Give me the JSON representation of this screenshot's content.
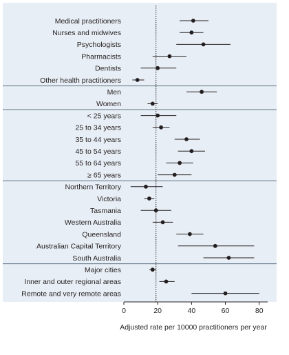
{
  "colors": {
    "panel_background": "#e8eef5",
    "divider": "#5c7184",
    "marker": "#231f20",
    "whisker": "#231f20",
    "reference_line": "#231f20",
    "axis": "#231f20",
    "text": "#231f20"
  },
  "chart_data": {
    "type": "forest",
    "title": "",
    "xlabel": "Adjusted rate per 10000 practitioners per year",
    "ylabel": "",
    "xlim": [
      0,
      85
    ],
    "xticks": [
      0,
      20,
      40,
      60,
      80
    ],
    "reference_value": 19,
    "grid": false,
    "legend": "none",
    "groups": [
      {
        "rows": [
          {
            "label": "Medical practitioners",
            "estimate": 41,
            "lower": 33,
            "upper": 50
          },
          {
            "label": "Nurses and midwives",
            "estimate": 40,
            "lower": 33,
            "upper": 47
          },
          {
            "label": "Psychologists",
            "estimate": 47,
            "lower": 31,
            "upper": 63
          },
          {
            "label": "Pharmacists",
            "estimate": 27,
            "lower": 17,
            "upper": 37
          },
          {
            "label": "Dentists",
            "estimate": 20,
            "lower": 10,
            "upper": 31
          },
          {
            "label": "Other health practitioners",
            "estimate": 8,
            "lower": 5,
            "upper": 12
          }
        ]
      },
      {
        "rows": [
          {
            "label": "Men",
            "estimate": 46,
            "lower": 37,
            "upper": 55
          },
          {
            "label": "Women",
            "estimate": 17,
            "lower": 14,
            "upper": 20
          }
        ]
      },
      {
        "rows": [
          {
            "label": "< 25 years",
            "estimate": 20,
            "lower": 10,
            "upper": 31
          },
          {
            "label": "25 to 34 years",
            "estimate": 22,
            "lower": 17,
            "upper": 27
          },
          {
            "label": "35 to 44 years",
            "estimate": 37,
            "lower": 30,
            "upper": 45
          },
          {
            "label": "45 to 54 years",
            "estimate": 40,
            "lower": 32,
            "upper": 48
          },
          {
            "label": "55 to 64 years",
            "estimate": 33,
            "lower": 25,
            "upper": 41
          },
          {
            "label": "≥ 65 years",
            "estimate": 30,
            "lower": 20,
            "upper": 40
          }
        ]
      },
      {
        "rows": [
          {
            "label": "Northern Territory",
            "estimate": 13,
            "lower": 4,
            "upper": 23
          },
          {
            "label": "Victoria",
            "estimate": 15,
            "lower": 12,
            "upper": 18
          },
          {
            "label": "Tasmania",
            "estimate": 19,
            "lower": 10,
            "upper": 28
          },
          {
            "label": "Western Australia",
            "estimate": 23,
            "lower": 17,
            "upper": 29
          },
          {
            "label": "Queensland",
            "estimate": 39,
            "lower": 31,
            "upper": 47
          },
          {
            "label": "Australian Capital Territory",
            "estimate": 54,
            "lower": 32,
            "upper": 77
          },
          {
            "label": "South Australia",
            "estimate": 62,
            "lower": 47,
            "upper": 77
          }
        ]
      },
      {
        "rows": [
          {
            "label": "Major cities",
            "estimate": 17,
            "lower": 15,
            "upper": 19
          },
          {
            "label": "Inner and outer regional areas",
            "estimate": 25,
            "lower": 21,
            "upper": 30
          },
          {
            "label": "Remote and very remote areas",
            "estimate": 60,
            "lower": 40,
            "upper": 80
          }
        ]
      }
    ]
  }
}
